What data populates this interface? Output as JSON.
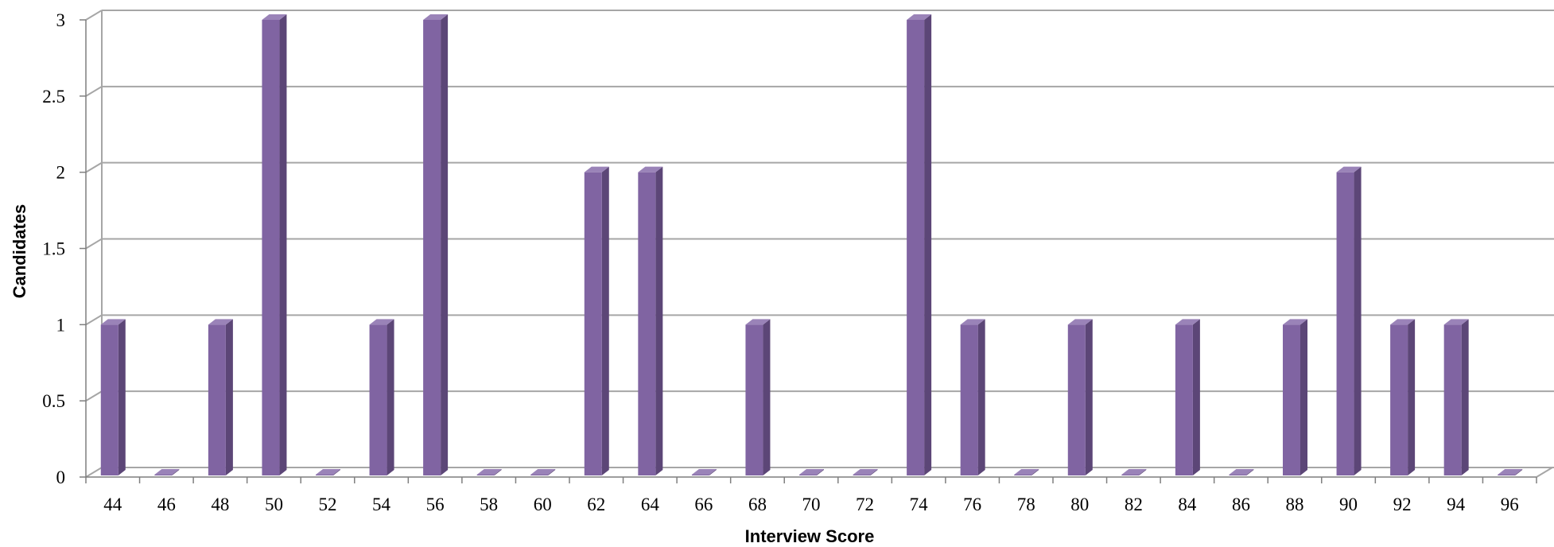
{
  "chart_data": {
    "type": "bar",
    "title": "",
    "xlabel": "Interview Score",
    "ylabel": "Candidates",
    "categories": [
      "44",
      "46",
      "48",
      "50",
      "52",
      "54",
      "56",
      "58",
      "60",
      "62",
      "64",
      "66",
      "68",
      "70",
      "72",
      "74",
      "76",
      "78",
      "80",
      "82",
      "84",
      "86",
      "88",
      "90",
      "92",
      "94",
      "96"
    ],
    "values": [
      1,
      0,
      1,
      3,
      0,
      1,
      3,
      0,
      0,
      2,
      2,
      0,
      1,
      0,
      0,
      3,
      1,
      0,
      1,
      0,
      1,
      0,
      1,
      2,
      1,
      1,
      0
    ],
    "y_ticks": [
      "0",
      "0.5",
      "1",
      "1.5",
      "2",
      "2.5",
      "3"
    ],
    "ylim": [
      0,
      3
    ],
    "grid": true,
    "legend": "none",
    "bar_color": "#8064A2",
    "bar_side_color": "#5C4677",
    "bar_top_color": "#9A83B8",
    "gridline_color": "#A6A6A6"
  }
}
